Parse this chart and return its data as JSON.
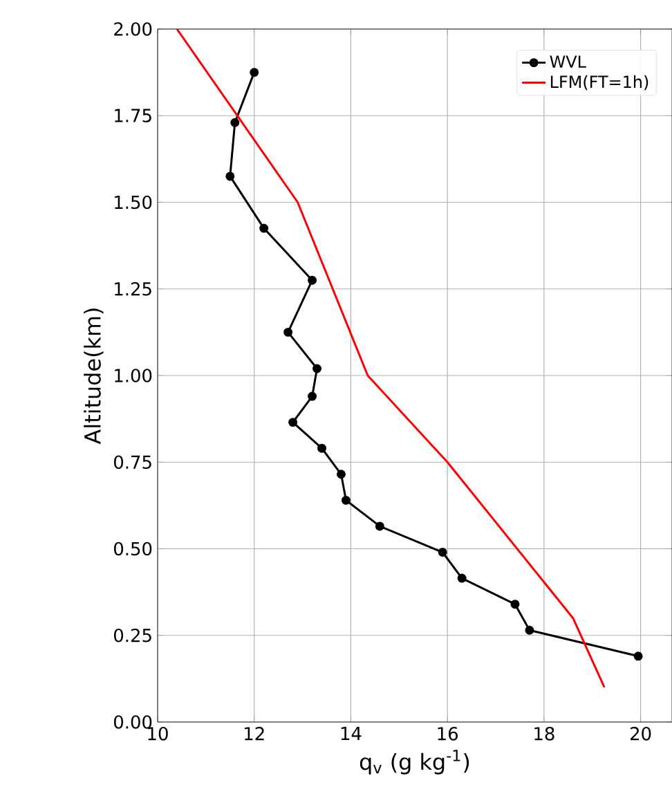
{
  "chart_data": {
    "type": "line",
    "xlabel": "q$_{v}$ (g kg$^{-1}$)",
    "ylabel": "Altitude(km)",
    "xlim": [
      10,
      20.65
    ],
    "ylim": [
      0,
      2
    ],
    "xticks": [
      10,
      12,
      14,
      16,
      18,
      20
    ],
    "yticks": [
      {
        "value": 0,
        "label": "0.00"
      },
      {
        "value": 0.25,
        "label": "0.25"
      },
      {
        "value": 0.5,
        "label": "0.50"
      },
      {
        "value": 0.75,
        "label": "0.75"
      },
      {
        "value": 1,
        "label": "1.00"
      },
      {
        "value": 1.25,
        "label": "1.25"
      },
      {
        "value": 1.5,
        "label": "1.50"
      },
      {
        "value": 1.75,
        "label": "1.75"
      },
      {
        "value": 2,
        "label": "2.00"
      }
    ],
    "grid": true,
    "legend": "top right",
    "series": [
      {
        "name": "WVL",
        "color": "#000000",
        "marker": "circle",
        "x": [
          12.0,
          11.6,
          11.5,
          12.2,
          13.2,
          12.7,
          13.3,
          13.2,
          12.8,
          13.4,
          13.8,
          13.9,
          14.6,
          15.9,
          16.3,
          17.4,
          17.7,
          19.95
        ],
        "values": [
          1.875,
          1.73,
          1.575,
          1.425,
          1.275,
          1.125,
          1.02,
          0.94,
          0.865,
          0.79,
          0.715,
          0.64,
          0.565,
          0.49,
          0.415,
          0.34,
          0.265,
          0.19
        ]
      },
      {
        "name": "LFM(FT=1h)",
        "color": "#ff0000",
        "marker": "none",
        "x": [
          10.4,
          12.9,
          14.35,
          16.0,
          18.6,
          19.25
        ],
        "values": [
          2.0,
          1.5,
          1.0,
          0.75,
          0.3,
          0.1
        ]
      }
    ]
  }
}
